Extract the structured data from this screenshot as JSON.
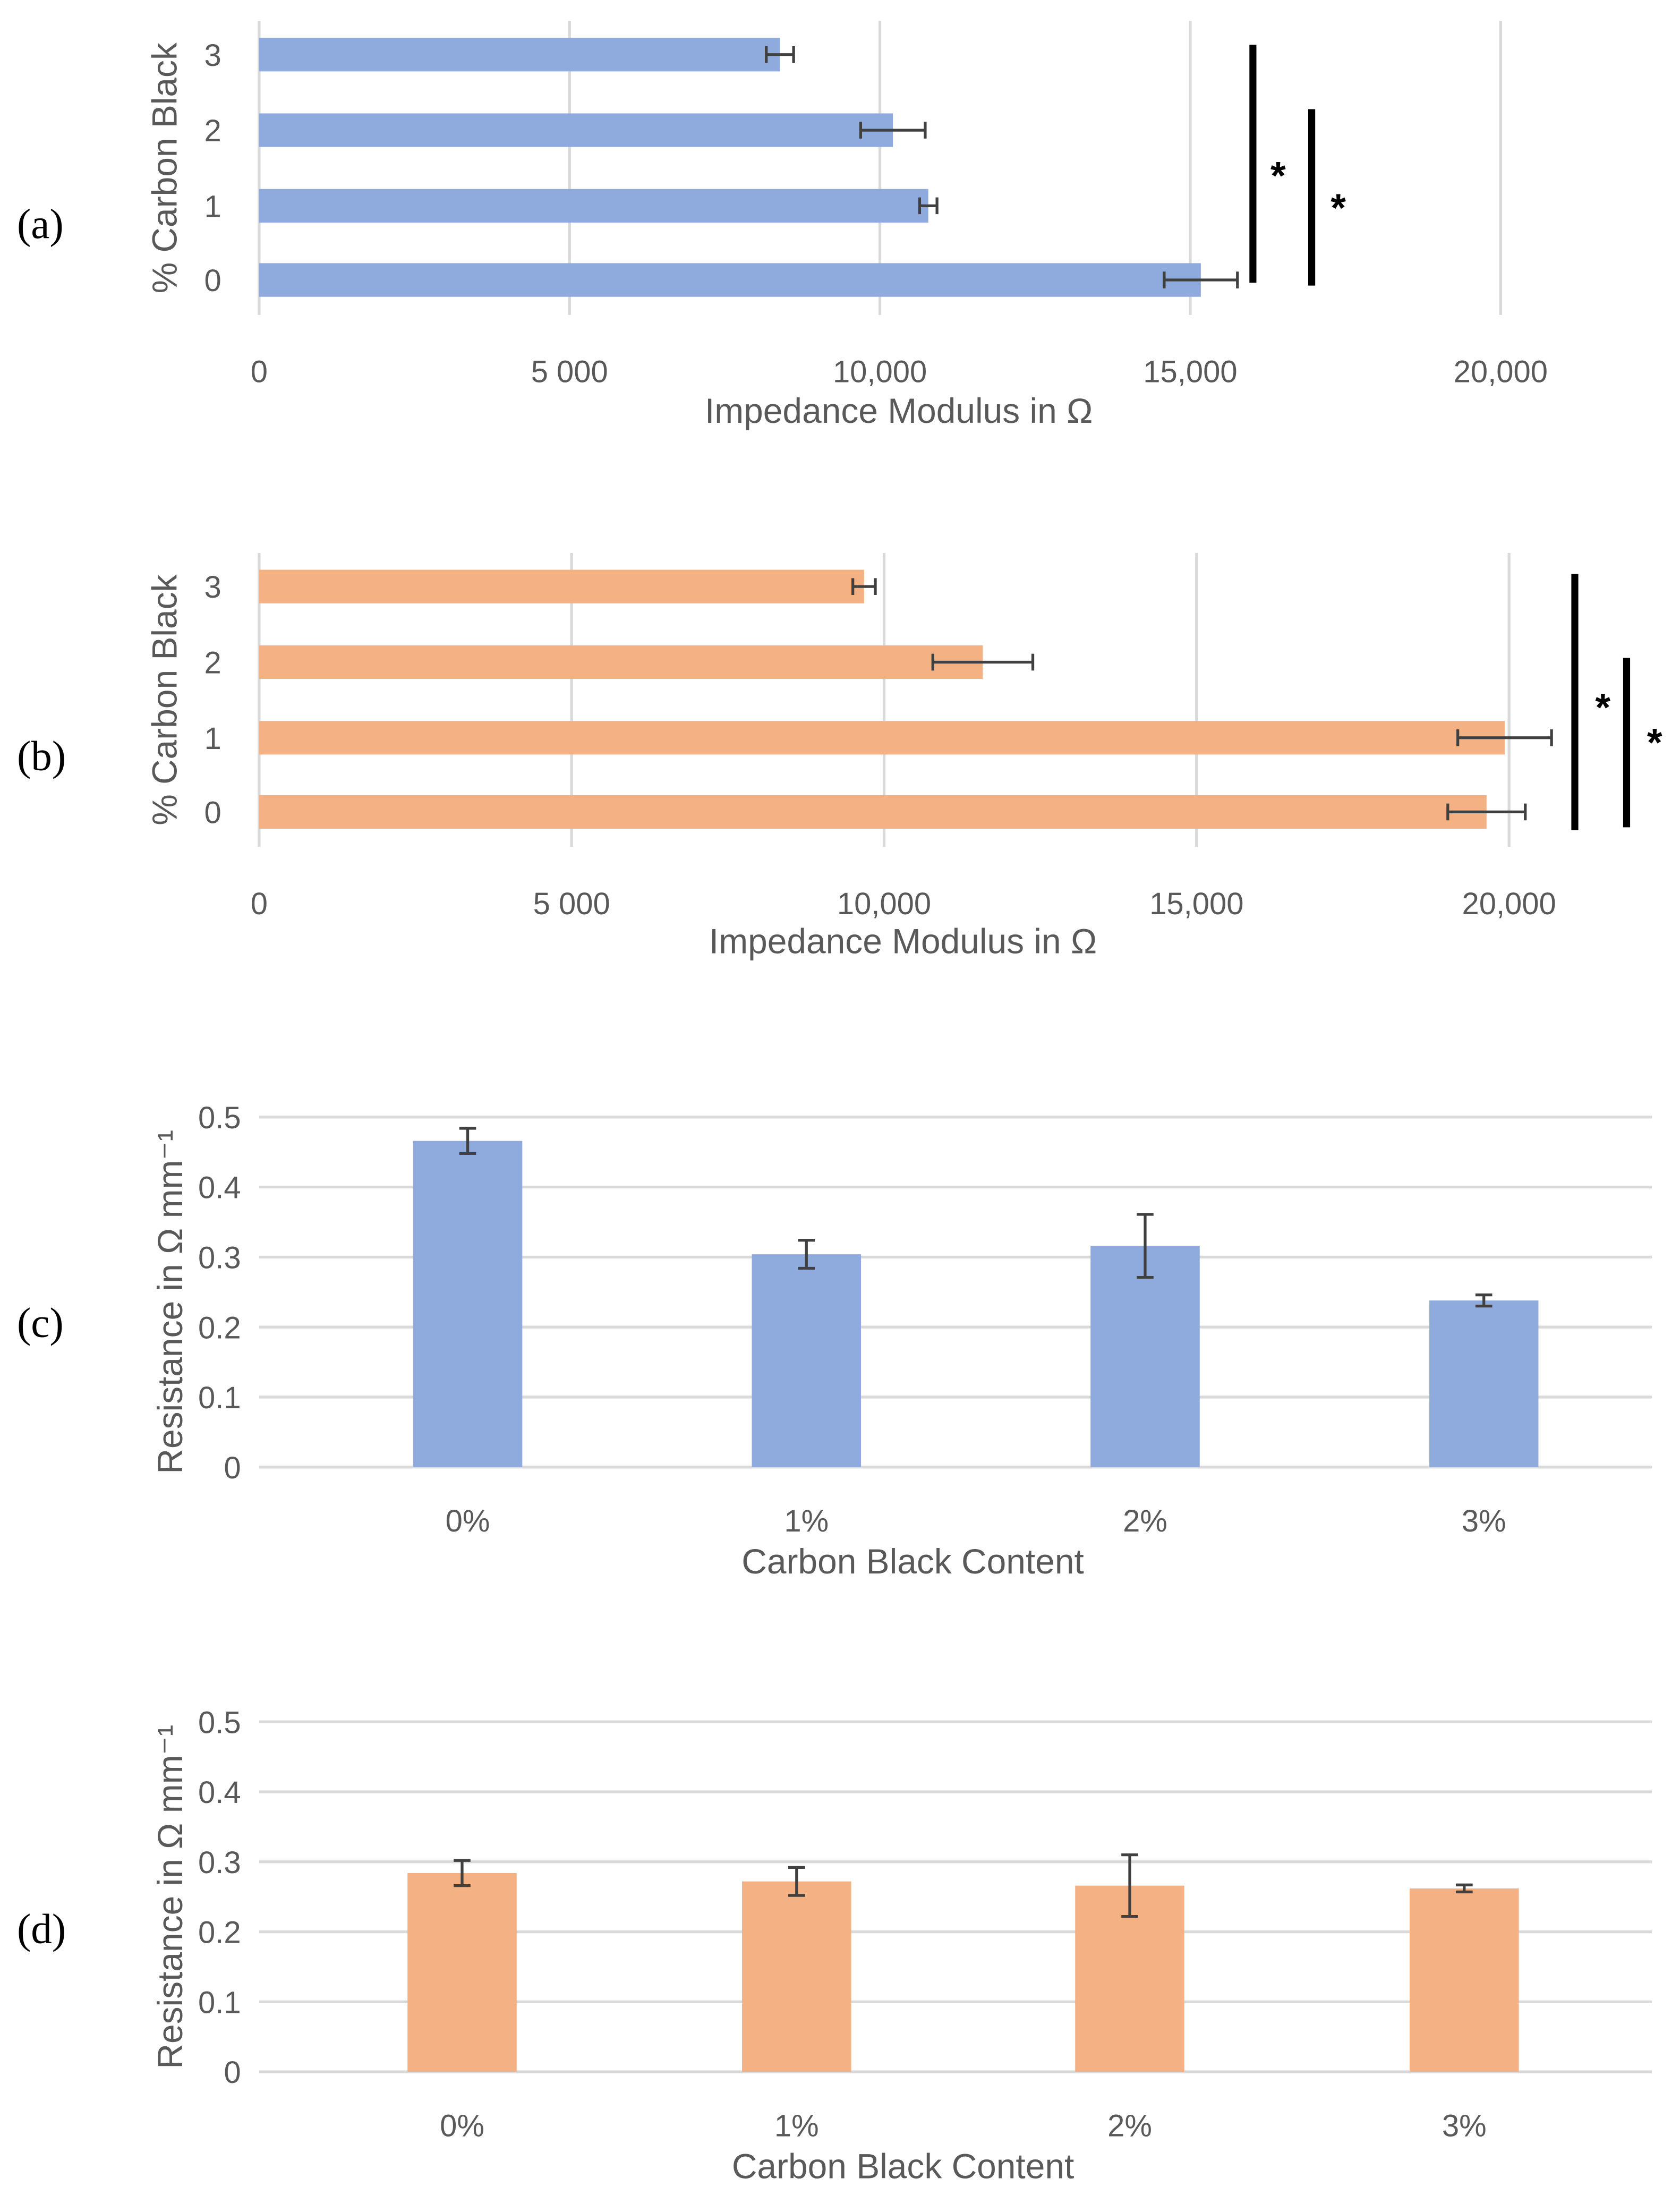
{
  "chart_data": [
    {
      "panel": "(a)",
      "type": "bar",
      "orientation": "horizontal",
      "categories": [
        "3",
        "2",
        "1",
        "0"
      ],
      "values": [
        8390,
        10210,
        10780,
        15170
      ],
      "errors": [
        220,
        520,
        140,
        590
      ],
      "color": "#8faadc",
      "xlabel": "Impedance Modulus in Ω",
      "ylabel": "% Carbon Black",
      "xlim": [
        0,
        20000
      ],
      "xticks": [
        0,
        5000,
        10000,
        15000,
        20000
      ],
      "xtick_labels": [
        "0",
        "5 000",
        "10,000",
        "15,000",
        "20,000"
      ],
      "grid": true,
      "annotations": [
        "*",
        "*"
      ]
    },
    {
      "panel": "(b)",
      "type": "bar",
      "orientation": "horizontal",
      "categories": [
        "3",
        "2",
        "1",
        "0"
      ],
      "values": [
        9680,
        11580,
        19930,
        19640
      ],
      "errors": [
        180,
        800,
        750,
        620
      ],
      "color": "#f4b183",
      "xlabel": "Impedance Modulus in Ω",
      "ylabel": "% Carbon Black",
      "xlim": [
        0,
        20000
      ],
      "xticks": [
        0,
        5000,
        10000,
        15000,
        20000
      ],
      "xtick_labels": [
        "0",
        "5 000",
        "10,000",
        "15,000",
        "20,000"
      ],
      "grid": true,
      "annotations": [
        "*",
        "*"
      ]
    },
    {
      "panel": "(c)",
      "type": "bar",
      "orientation": "vertical",
      "categories": [
        "0%",
        "1%",
        "2%",
        "3%"
      ],
      "values": [
        0.466,
        0.304,
        0.316,
        0.238
      ],
      "errors": [
        0.018,
        0.02,
        0.045,
        0.008
      ],
      "color": "#8faadc",
      "xlabel": "Carbon Black Content",
      "ylabel": "Resistance in Ω mm⁻¹",
      "ylim": [
        0,
        0.5
      ],
      "yticks": [
        0,
        0.1,
        0.2,
        0.3,
        0.4,
        0.5
      ],
      "ytick_labels": [
        "0",
        "0.1",
        "0.2",
        "0.3",
        "0.4",
        "0.5"
      ],
      "grid": true
    },
    {
      "panel": "(d)",
      "type": "bar",
      "orientation": "vertical",
      "categories": [
        "0%",
        "1%",
        "2%",
        "3%"
      ],
      "values": [
        0.284,
        0.272,
        0.266,
        0.262
      ],
      "errors": [
        0.018,
        0.02,
        0.044,
        0.005
      ],
      "color": "#f4b183",
      "xlabel": "Carbon Black Content",
      "ylabel": "Resistance in Ω mm⁻¹",
      "ylim": [
        0,
        0.5
      ],
      "yticks": [
        0,
        0.1,
        0.2,
        0.3,
        0.4,
        0.5
      ],
      "ytick_labels": [
        "0",
        "0.1",
        "0.2",
        "0.3",
        "0.4",
        "0.5"
      ],
      "grid": true
    }
  ]
}
